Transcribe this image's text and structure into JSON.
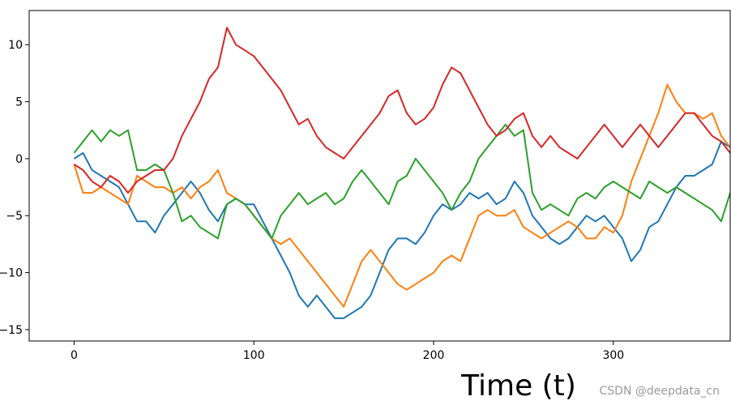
{
  "chart_data": {
    "type": "line",
    "title": "",
    "xlabel": "Time (t)",
    "ylabel": "",
    "xlim": [
      -25,
      365
    ],
    "ylim": [
      -16,
      13
    ],
    "xticks": [
      0,
      100,
      200,
      300
    ],
    "yticks": [
      -15,
      -10,
      -5,
      0,
      5,
      10
    ],
    "grid": false,
    "legend": "none",
    "series": [
      {
        "color": "#1f77b4",
        "points": [
          [
            0,
            0
          ],
          [
            5,
            0.5
          ],
          [
            10,
            -1
          ],
          [
            15,
            -1.5
          ],
          [
            20,
            -2
          ],
          [
            25,
            -2.5
          ],
          [
            30,
            -4
          ],
          [
            35,
            -5.5
          ],
          [
            40,
            -5.5
          ],
          [
            45,
            -6.5
          ],
          [
            50,
            -5
          ],
          [
            55,
            -4
          ],
          [
            60,
            -3
          ],
          [
            65,
            -2
          ],
          [
            70,
            -3
          ],
          [
            75,
            -4.5
          ],
          [
            80,
            -5.5
          ],
          [
            85,
            -4
          ],
          [
            90,
            -3.5
          ],
          [
            95,
            -4
          ],
          [
            100,
            -4
          ],
          [
            105,
            -5.5
          ],
          [
            110,
            -7
          ],
          [
            115,
            -8.5
          ],
          [
            120,
            -10
          ],
          [
            125,
            -12
          ],
          [
            130,
            -13
          ],
          [
            135,
            -12
          ],
          [
            140,
            -13
          ],
          [
            145,
            -14
          ],
          [
            150,
            -14
          ],
          [
            155,
            -13.5
          ],
          [
            160,
            -13
          ],
          [
            165,
            -12
          ],
          [
            170,
            -10
          ],
          [
            175,
            -8
          ],
          [
            180,
            -7
          ],
          [
            185,
            -7
          ],
          [
            190,
            -7.5
          ],
          [
            195,
            -6.5
          ],
          [
            200,
            -5
          ],
          [
            205,
            -4
          ],
          [
            210,
            -4.5
          ],
          [
            215,
            -4
          ],
          [
            220,
            -3
          ],
          [
            225,
            -3.5
          ],
          [
            230,
            -3
          ],
          [
            235,
            -4
          ],
          [
            240,
            -3.5
          ],
          [
            245,
            -2
          ],
          [
            250,
            -3
          ],
          [
            255,
            -5
          ],
          [
            260,
            -6
          ],
          [
            265,
            -7
          ],
          [
            270,
            -7.5
          ],
          [
            275,
            -7
          ],
          [
            280,
            -6
          ],
          [
            285,
            -5
          ],
          [
            290,
            -5.5
          ],
          [
            295,
            -5
          ],
          [
            300,
            -6
          ],
          [
            305,
            -7
          ],
          [
            310,
            -9
          ],
          [
            315,
            -8
          ],
          [
            320,
            -6
          ],
          [
            325,
            -5.5
          ],
          [
            330,
            -4
          ],
          [
            335,
            -2.5
          ],
          [
            340,
            -1.5
          ],
          [
            345,
            -1.5
          ],
          [
            350,
            -1
          ],
          [
            355,
            -0.5
          ],
          [
            360,
            1.5
          ],
          [
            365,
            1
          ]
        ]
      },
      {
        "color": "#ff7f0e",
        "points": [
          [
            0,
            -0.5
          ],
          [
            5,
            -3
          ],
          [
            10,
            -3
          ],
          [
            15,
            -2.5
          ],
          [
            20,
            -3
          ],
          [
            25,
            -3.5
          ],
          [
            30,
            -4
          ],
          [
            35,
            -1.5
          ],
          [
            40,
            -2
          ],
          [
            45,
            -2.5
          ],
          [
            50,
            -2.5
          ],
          [
            55,
            -3
          ],
          [
            60,
            -2.5
          ],
          [
            65,
            -3.5
          ],
          [
            70,
            -2.5
          ],
          [
            75,
            -2
          ],
          [
            80,
            -1
          ],
          [
            85,
            -3
          ],
          [
            90,
            -3.5
          ],
          [
            95,
            -4
          ],
          [
            100,
            -5
          ],
          [
            105,
            -6
          ],
          [
            110,
            -7
          ],
          [
            115,
            -7.5
          ],
          [
            120,
            -7
          ],
          [
            125,
            -8
          ],
          [
            130,
            -9
          ],
          [
            135,
            -10
          ],
          [
            140,
            -11
          ],
          [
            145,
            -12
          ],
          [
            150,
            -13
          ],
          [
            155,
            -11
          ],
          [
            160,
            -9
          ],
          [
            165,
            -8
          ],
          [
            170,
            -9
          ],
          [
            175,
            -10
          ],
          [
            180,
            -11
          ],
          [
            185,
            -11.5
          ],
          [
            190,
            -11
          ],
          [
            195,
            -10.5
          ],
          [
            200,
            -10
          ],
          [
            205,
            -9
          ],
          [
            210,
            -8.5
          ],
          [
            215,
            -9
          ],
          [
            220,
            -7
          ],
          [
            225,
            -5
          ],
          [
            230,
            -4.5
          ],
          [
            235,
            -5
          ],
          [
            240,
            -5
          ],
          [
            245,
            -4.5
          ],
          [
            250,
            -6
          ],
          [
            255,
            -6.5
          ],
          [
            260,
            -7
          ],
          [
            265,
            -6.5
          ],
          [
            270,
            -6
          ],
          [
            275,
            -5.5
          ],
          [
            280,
            -6
          ],
          [
            285,
            -7
          ],
          [
            290,
            -7
          ],
          [
            295,
            -6
          ],
          [
            300,
            -6.5
          ],
          [
            305,
            -5
          ],
          [
            310,
            -2
          ],
          [
            315,
            0
          ],
          [
            320,
            2
          ],
          [
            325,
            4
          ],
          [
            330,
            6.5
          ],
          [
            335,
            5
          ],
          [
            340,
            4
          ],
          [
            345,
            4
          ],
          [
            350,
            3.5
          ],
          [
            355,
            4
          ],
          [
            360,
            2
          ],
          [
            365,
            1
          ]
        ]
      },
      {
        "color": "#2ca02c",
        "points": [
          [
            0,
            0.5
          ],
          [
            5,
            1.5
          ],
          [
            10,
            2.5
          ],
          [
            15,
            1.5
          ],
          [
            20,
            2.5
          ],
          [
            25,
            2
          ],
          [
            30,
            2.5
          ],
          [
            35,
            -1
          ],
          [
            40,
            -1
          ],
          [
            45,
            -0.5
          ],
          [
            50,
            -1
          ],
          [
            55,
            -3
          ],
          [
            60,
            -5.5
          ],
          [
            65,
            -5
          ],
          [
            70,
            -6
          ],
          [
            75,
            -6.5
          ],
          [
            80,
            -7
          ],
          [
            85,
            -4
          ],
          [
            90,
            -3.5
          ],
          [
            95,
            -4
          ],
          [
            100,
            -5
          ],
          [
            105,
            -6
          ],
          [
            110,
            -7
          ],
          [
            115,
            -5
          ],
          [
            120,
            -4
          ],
          [
            125,
            -3
          ],
          [
            130,
            -4
          ],
          [
            135,
            -3.5
          ],
          [
            140,
            -3
          ],
          [
            145,
            -4
          ],
          [
            150,
            -3.5
          ],
          [
            155,
            -2
          ],
          [
            160,
            -1
          ],
          [
            165,
            -2
          ],
          [
            170,
            -3
          ],
          [
            175,
            -4
          ],
          [
            180,
            -2
          ],
          [
            185,
            -1.5
          ],
          [
            190,
            0
          ],
          [
            195,
            -1
          ],
          [
            200,
            -2
          ],
          [
            205,
            -3
          ],
          [
            210,
            -4.5
          ],
          [
            215,
            -3
          ],
          [
            220,
            -2
          ],
          [
            225,
            0
          ],
          [
            230,
            1
          ],
          [
            235,
            2
          ],
          [
            240,
            3
          ],
          [
            245,
            2
          ],
          [
            250,
            2.5
          ],
          [
            255,
            -3
          ],
          [
            260,
            -4.5
          ],
          [
            265,
            -4
          ],
          [
            270,
            -4.5
          ],
          [
            275,
            -5
          ],
          [
            280,
            -3.5
          ],
          [
            285,
            -3
          ],
          [
            290,
            -3.5
          ],
          [
            295,
            -2.5
          ],
          [
            300,
            -2
          ],
          [
            305,
            -2.5
          ],
          [
            310,
            -3
          ],
          [
            315,
            -3.5
          ],
          [
            320,
            -2
          ],
          [
            325,
            -2.5
          ],
          [
            330,
            -3
          ],
          [
            335,
            -2.5
          ],
          [
            340,
            -3
          ],
          [
            345,
            -3.5
          ],
          [
            350,
            -4
          ],
          [
            355,
            -4.5
          ],
          [
            360,
            -5.5
          ],
          [
            365,
            -3
          ]
        ]
      },
      {
        "color": "#d62728",
        "points": [
          [
            0,
            -0.5
          ],
          [
            5,
            -1
          ],
          [
            10,
            -2
          ],
          [
            15,
            -2.5
          ],
          [
            20,
            -1.5
          ],
          [
            25,
            -2
          ],
          [
            30,
            -3
          ],
          [
            35,
            -2
          ],
          [
            40,
            -1.5
          ],
          [
            45,
            -1
          ],
          [
            50,
            -1
          ],
          [
            55,
            0
          ],
          [
            60,
            2
          ],
          [
            65,
            3.5
          ],
          [
            70,
            5
          ],
          [
            75,
            7
          ],
          [
            80,
            8
          ],
          [
            85,
            11.5
          ],
          [
            90,
            10
          ],
          [
            95,
            9.5
          ],
          [
            100,
            9
          ],
          [
            105,
            8
          ],
          [
            110,
            7
          ],
          [
            115,
            6
          ],
          [
            120,
            4.5
          ],
          [
            125,
            3
          ],
          [
            130,
            3.5
          ],
          [
            135,
            2
          ],
          [
            140,
            1
          ],
          [
            145,
            0.5
          ],
          [
            150,
            0
          ],
          [
            155,
            1
          ],
          [
            160,
            2
          ],
          [
            165,
            3
          ],
          [
            170,
            4
          ],
          [
            175,
            5.5
          ],
          [
            180,
            6
          ],
          [
            185,
            4
          ],
          [
            190,
            3
          ],
          [
            195,
            3.5
          ],
          [
            200,
            4.5
          ],
          [
            205,
            6.5
          ],
          [
            210,
            8
          ],
          [
            215,
            7.5
          ],
          [
            220,
            6
          ],
          [
            225,
            4.5
          ],
          [
            230,
            3
          ],
          [
            235,
            2
          ],
          [
            240,
            2.5
          ],
          [
            245,
            3.5
          ],
          [
            250,
            4
          ],
          [
            255,
            2
          ],
          [
            260,
            1
          ],
          [
            265,
            2
          ],
          [
            270,
            1
          ],
          [
            275,
            0.5
          ],
          [
            280,
            0
          ],
          [
            285,
            1
          ],
          [
            290,
            2
          ],
          [
            295,
            3
          ],
          [
            300,
            2
          ],
          [
            305,
            1
          ],
          [
            310,
            2
          ],
          [
            315,
            3
          ],
          [
            320,
            2
          ],
          [
            325,
            1
          ],
          [
            330,
            2
          ],
          [
            335,
            3
          ],
          [
            340,
            4
          ],
          [
            345,
            4
          ],
          [
            350,
            3
          ],
          [
            355,
            2
          ],
          [
            360,
            1.5
          ],
          [
            365,
            0.5
          ]
        ]
      }
    ]
  },
  "watermark": "CSDN @deepdata_cn"
}
